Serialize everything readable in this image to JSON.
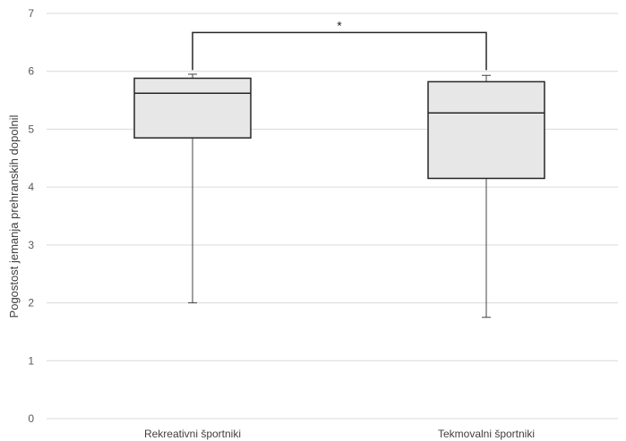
{
  "chart_data": {
    "type": "boxplot",
    "ylabel": "Pogostost jemanja prehranskih dopolnil",
    "ylim": [
      0,
      7
    ],
    "yticks": [
      "0",
      "1",
      "2",
      "3",
      "4",
      "5",
      "6",
      "7"
    ],
    "grid": true,
    "categories": [
      "Rekreativni športniki",
      "Tekmovalni športniki"
    ],
    "boxes": [
      {
        "min": 2.0,
        "q1": 4.85,
        "median": 5.62,
        "q3": 5.88,
        "max": 5.95
      },
      {
        "min": 1.75,
        "q1": 4.15,
        "median": 5.28,
        "q3": 5.82,
        "max": 5.93
      }
    ],
    "annotation": {
      "text": "*",
      "y": 6.67
    }
  }
}
